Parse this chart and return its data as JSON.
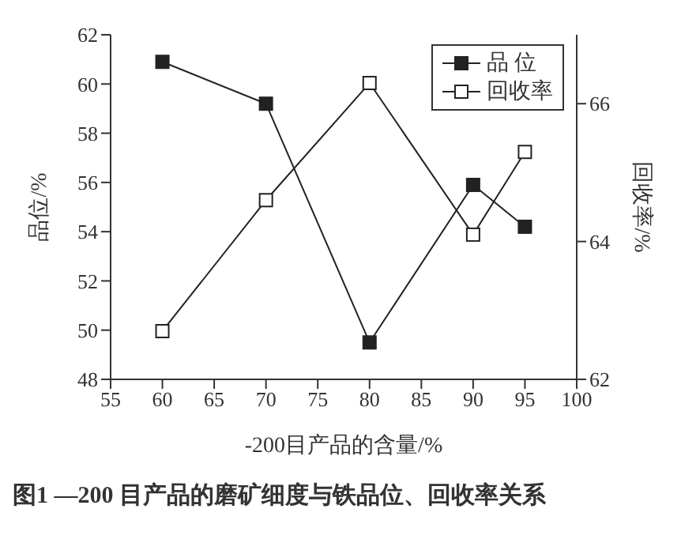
{
  "chart_data": {
    "type": "line",
    "title": "图1 —200 目产品的磨矿细度与铁品位、回收率关系",
    "xlabel": "-200目产品的含量/%",
    "ylabel": "品位/%",
    "y2label": "回收率/%",
    "x": [
      60,
      70,
      80,
      90,
      95
    ],
    "series": [
      {
        "name": "品 位",
        "color": "#222222",
        "marker": "square",
        "values": [
          60.9,
          59.2,
          49.5,
          55.9,
          54.2
        ]
      },
      {
        "name": "回收率",
        "color": "#222222",
        "marker": "square_open",
        "axis": "y2",
        "values": [
          62.7,
          64.6,
          66.3,
          64.1,
          65.3
        ]
      }
    ],
    "xlim": [
      55,
      100
    ],
    "xticks": [
      55,
      60,
      65,
      70,
      75,
      80,
      85,
      90,
      95,
      100
    ],
    "ylim": [
      48,
      62
    ],
    "yticks": [
      48,
      50,
      52,
      54,
      56,
      58,
      60,
      62
    ],
    "y2lim": [
      62,
      67
    ],
    "y2ticks": [
      62,
      64,
      66
    ],
    "legend": "top right",
    "grid": false,
    "line_style": "solid"
  }
}
